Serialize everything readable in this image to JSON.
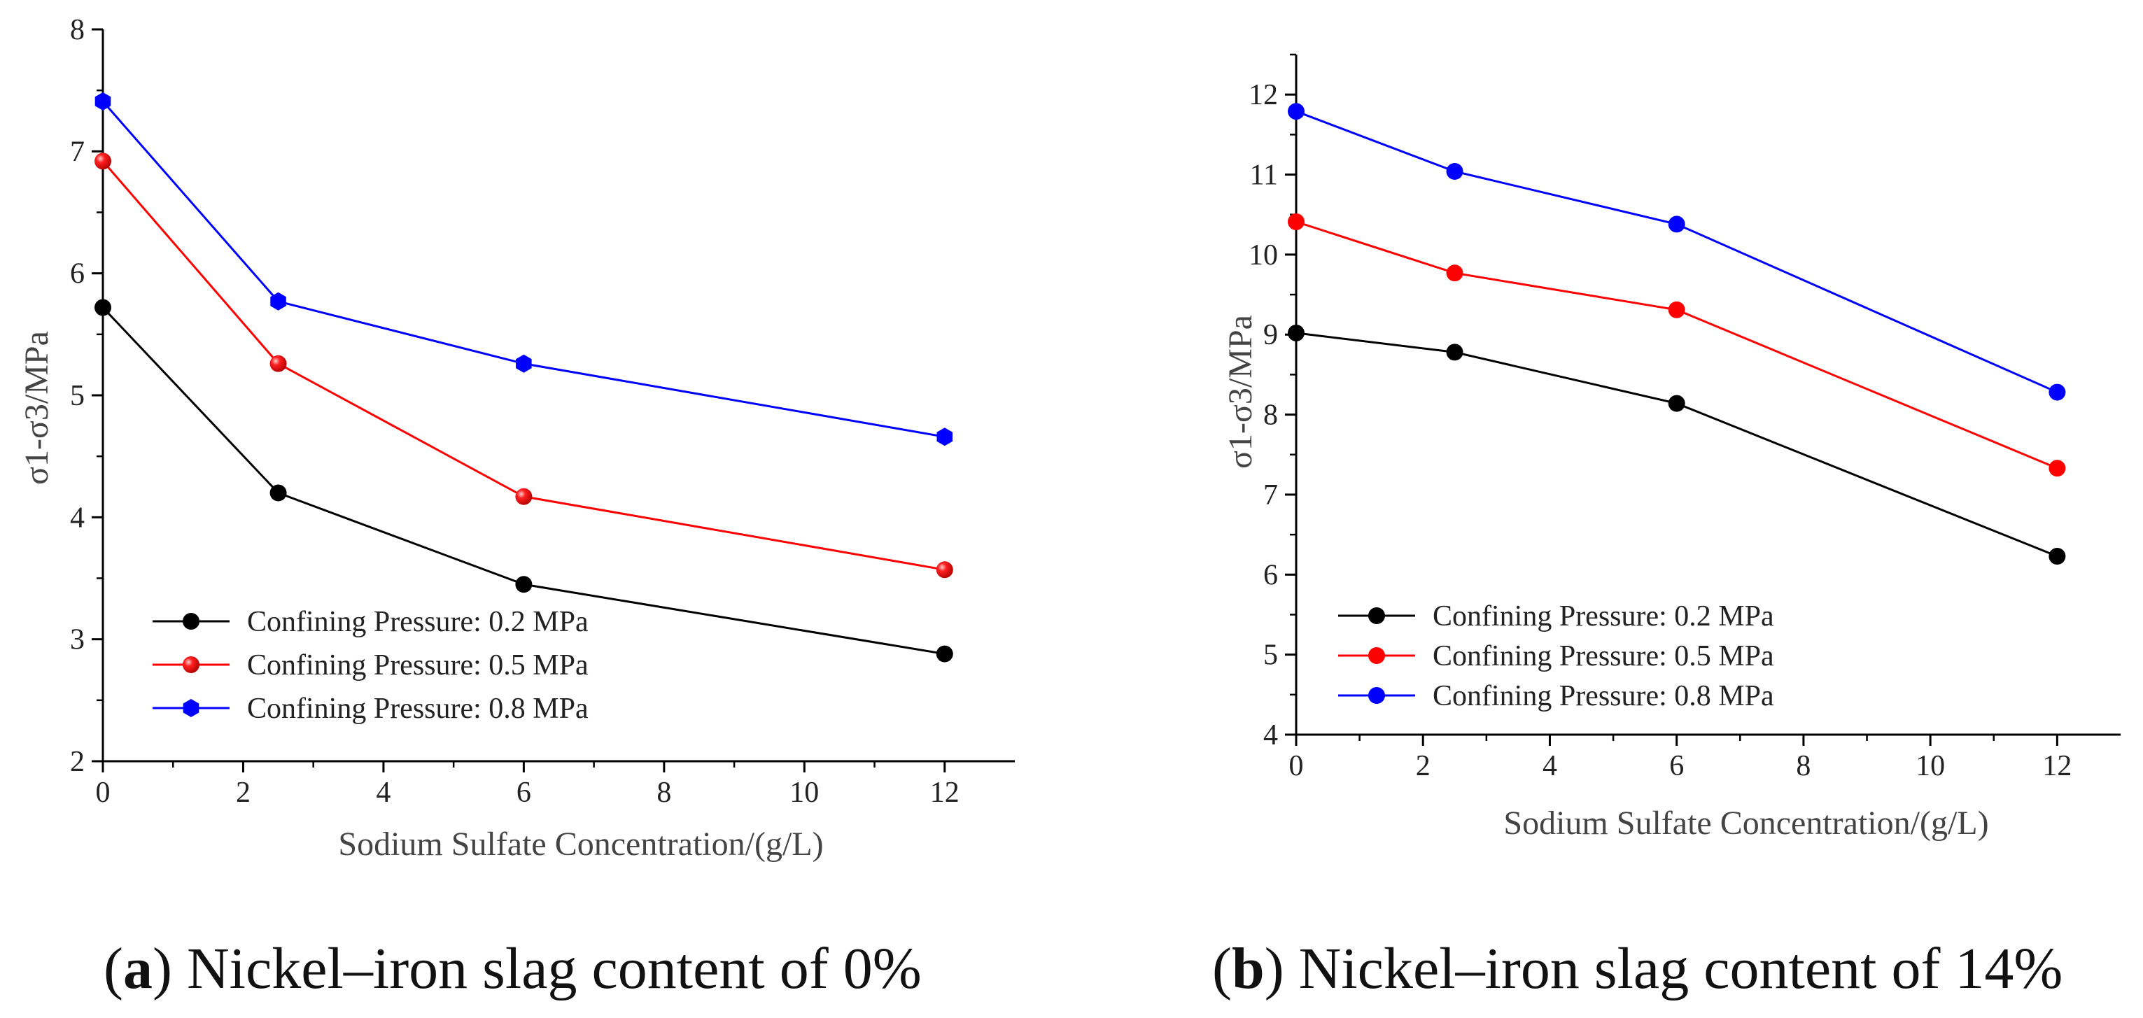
{
  "chart_data": [
    {
      "type": "line",
      "panel": "a",
      "caption_letter": "a",
      "caption_text": ") Nickel–iron slag content of 0%",
      "xlabel": "Sodium Sulfate Concentration/(g/L)",
      "ylabel": "σ1-σ3/MPa",
      "xlim": [
        0,
        13
      ],
      "ylim": [
        2,
        8
      ],
      "xticks": [
        0,
        2,
        4,
        6,
        8,
        10,
        12
      ],
      "yticks": [
        2,
        3,
        4,
        5,
        6,
        7,
        8
      ],
      "x": [
        0,
        2.5,
        6,
        12
      ],
      "legend_position": "bottom-left",
      "series": [
        {
          "name": "Confining Pressure: 0.2 MPa",
          "color": "#000000",
          "marker": "circle",
          "values": [
            5.72,
            4.2,
            3.45,
            2.88
          ]
        },
        {
          "name": "Confining Pressure: 0.5 MPa",
          "color": "#ff0000",
          "marker": "sphere",
          "values": [
            6.92,
            5.26,
            4.17,
            3.57
          ]
        },
        {
          "name": "Confining Pressure: 0.8 MPa",
          "color": "#0000ff",
          "marker": "hexagon",
          "values": [
            7.41,
            5.77,
            5.26,
            4.66
          ]
        }
      ]
    },
    {
      "type": "line",
      "panel": "b",
      "caption_letter": "b",
      "caption_text": ") Nickel–iron slag content of 14%",
      "xlabel": "Sodium Sulfate Concentration/(g/L)",
      "ylabel": "σ1-σ3/MPa",
      "xlim": [
        0,
        13
      ],
      "ylim": [
        4,
        12.5
      ],
      "xticks": [
        0,
        2,
        4,
        6,
        8,
        10,
        12
      ],
      "yticks": [
        4,
        5,
        6,
        7,
        8,
        9,
        10,
        11,
        12
      ],
      "x": [
        0,
        2.5,
        6,
        12
      ],
      "legend_position": "bottom-left",
      "series": [
        {
          "name": "Confining Pressure: 0.2 MPa",
          "color": "#000000",
          "marker": "circle",
          "values": [
            9.02,
            8.78,
            8.14,
            6.23
          ]
        },
        {
          "name": "Confining Pressure: 0.5 MPa",
          "color": "#ff0000",
          "marker": "circle",
          "values": [
            10.41,
            9.77,
            9.31,
            7.33
          ]
        },
        {
          "name": "Confining Pressure: 0.8 MPa",
          "color": "#0000ff",
          "marker": "circle",
          "values": [
            11.79,
            11.04,
            10.38,
            8.28
          ]
        }
      ]
    }
  ]
}
